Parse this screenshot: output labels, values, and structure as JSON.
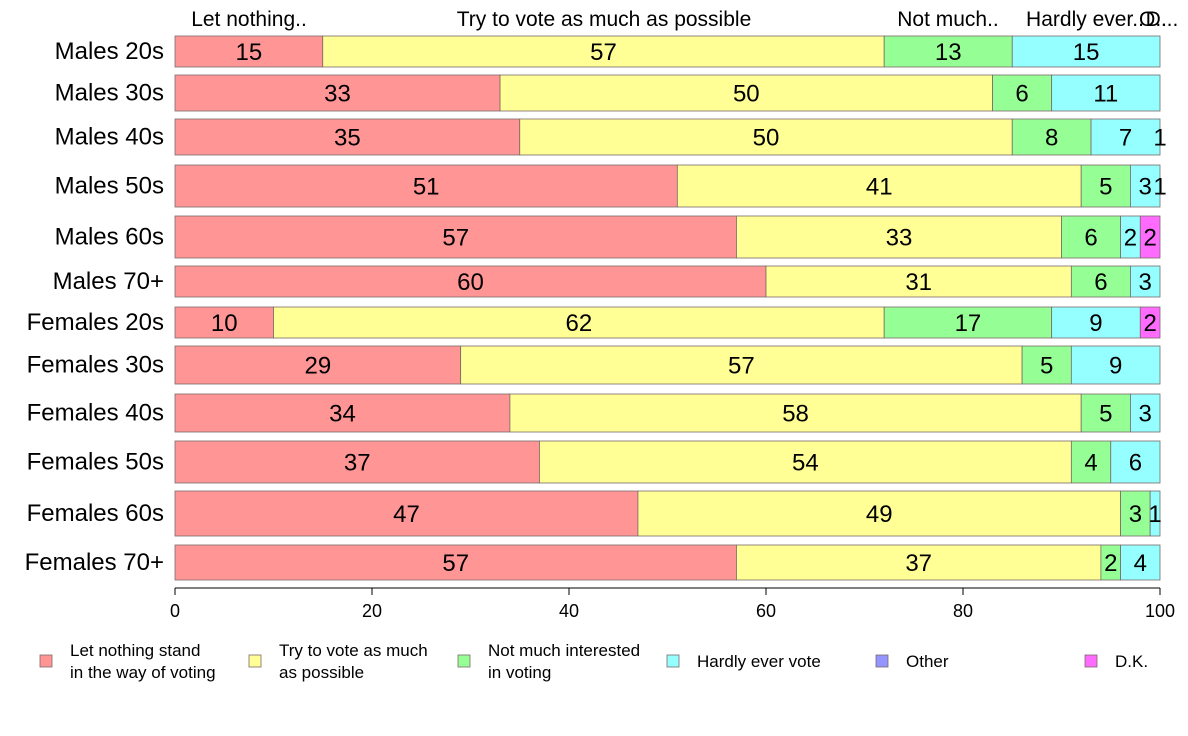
{
  "chart_data": {
    "type": "bar",
    "orientation": "horizontal",
    "stacked": true,
    "categories": [
      "Males 20s",
      "Males 30s",
      "Males 40s",
      "Males 50s",
      "Males 60s",
      "Males 70+",
      "Females 20s",
      "Females 30s",
      "Females 40s",
      "Females 50s",
      "Females 60s",
      "Females 70+"
    ],
    "series": [
      {
        "name": "Let nothing stand in the way of voting",
        "legend_lines": [
          "Let nothing stand",
          "in the way of voting"
        ],
        "color": "#ff9595",
        "values": [
          15,
          33,
          35,
          51,
          57,
          60,
          10,
          29,
          34,
          37,
          47,
          57
        ],
        "labels": [
          "15",
          "33",
          "35",
          "51",
          "57",
          "60",
          "10",
          "29",
          "34",
          "37",
          "47",
          "57"
        ]
      },
      {
        "name": "Try to vote as much as possible",
        "legend_lines": [
          "Try to vote as much",
          "as possible"
        ],
        "color": "#ffff95",
        "values": [
          57,
          50,
          50,
          41,
          33,
          31,
          62,
          57,
          58,
          54,
          49,
          37
        ],
        "labels": [
          "57",
          "50",
          "50",
          "41",
          "33",
          "31",
          "62",
          "57",
          "58",
          "54",
          "49",
          "37"
        ]
      },
      {
        "name": "Not much interested in voting",
        "legend_lines": [
          "Not much interested",
          "in voting"
        ],
        "color": "#95ff95",
        "values": [
          13,
          6,
          8,
          5,
          6,
          6,
          17,
          5,
          5,
          4,
          3,
          2
        ],
        "labels": [
          "13",
          "6",
          "8",
          "5",
          "6",
          "6",
          "17",
          "5",
          "5",
          "4",
          "3",
          "2"
        ]
      },
      {
        "name": "Hardly ever vote",
        "legend_lines": [
          "Hardly ever vote"
        ],
        "color": "#95ffff",
        "values": [
          15,
          11,
          7,
          3,
          2,
          3,
          9,
          9,
          3,
          6,
          1,
          4
        ],
        "labels": [
          "15",
          "11",
          "7",
          "3",
          "2",
          "3",
          "9",
          "9",
          "3",
          "6",
          "1",
          "4"
        ]
      },
      {
        "name": "Other",
        "legend_lines": [
          "Other"
        ],
        "color": "#9595ff",
        "values": [
          0,
          0,
          0,
          0,
          0,
          0,
          0,
          0,
          0,
          0,
          0,
          0
        ],
        "labels": [
          "",
          "",
          "",
          "",
          "",
          "",
          "",
          "",
          "",
          "",
          "",
          ""
        ]
      },
      {
        "name": "D.K.",
        "legend_lines": [
          "D.K."
        ],
        "color": "#ff6bff",
        "values": [
          0,
          0,
          1,
          1,
          2,
          0,
          2,
          0,
          0,
          0,
          0.5,
          0
        ],
        "labels": [
          "",
          "",
          "1",
          "1",
          "2",
          "",
          "2",
          "",
          "",
          "",
          "",
          ""
        ]
      }
    ],
    "top_labels": [
      "Let nothing..",
      "Try to vote as much as possible",
      "Not much..",
      "Hardly ever..",
      "O..",
      "D..."
    ],
    "xlim": [
      0,
      100
    ],
    "xticks": [
      0,
      20,
      40,
      60,
      80,
      100
    ],
    "grid": false,
    "legend_position": "bottom"
  }
}
